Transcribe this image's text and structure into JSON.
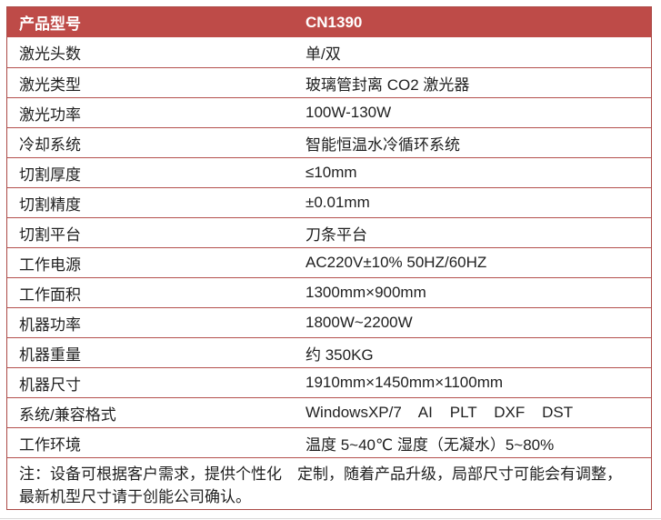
{
  "table": {
    "header": {
      "label": "产品型号",
      "value": "CN1390"
    },
    "rows": [
      {
        "label": "激光头数",
        "value": "单/双"
      },
      {
        "label": "激光类型",
        "value": "玻璃管封离 CO2 激光器"
      },
      {
        "label": "激光功率",
        "value": "100W-130W"
      },
      {
        "label": "冷却系统",
        "value": "智能恒温水冷循环系统"
      },
      {
        "label": "切割厚度",
        "value": "≤10mm"
      },
      {
        "label": "切割精度",
        "value": "±0.01mm"
      },
      {
        "label": "切割平台",
        "value": "刀条平台"
      },
      {
        "label": "工作电源",
        "value": "AC220V±10% 50HZ/60HZ"
      },
      {
        "label": "工作面积",
        "value": "1300mm×900mm"
      },
      {
        "label": "机器功率",
        "value": "1800W~2200W"
      },
      {
        "label": "机器重量",
        "value": "约 350KG"
      },
      {
        "label": "机器尺寸",
        "value": "1910mm×1450mm×1100mm"
      },
      {
        "label": "系统/兼容格式",
        "value": "WindowsXP/7    AI    PLT    DXF    DST"
      },
      {
        "label": "工作环境",
        "value": "温度 5~40℃ 湿度（无凝水）5~80%"
      }
    ],
    "note": {
      "line1": "注：设备可根据客户需求，提供个性化　定制，随着产品升级，局部尺寸可能会有调整，",
      "line2": "最新机型尺寸请于创能公司确认。"
    },
    "colors": {
      "header_bg": "#be4b48",
      "header_text": "#ffffff",
      "row_line": "#b4504d",
      "outer_border": "#ab4a47",
      "text": "#1f1f1f",
      "bottom_rule": "#d8d8d8"
    }
  }
}
